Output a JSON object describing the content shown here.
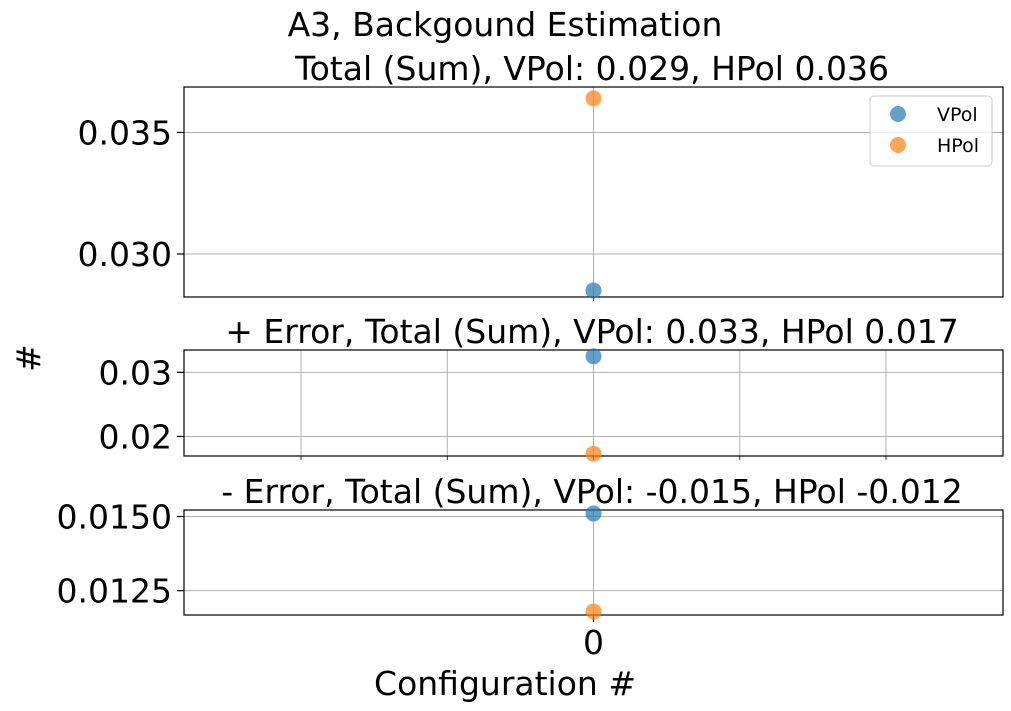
{
  "suptitle": "A3, Backgound Estimation",
  "ylabel": "#",
  "xlabel": "Configuration #",
  "legend": {
    "placement": "top-right",
    "entries": [
      {
        "label": "VPol",
        "color": "#1f77b4"
      },
      {
        "label": "HPol",
        "color": "#ff7f0e"
      }
    ]
  },
  "chart_data": [
    {
      "type": "scatter",
      "title": "Total (Sum), VPol: 0.029, HPol 0.036",
      "x": [
        0
      ],
      "xlim": [
        -1.4,
        1.4
      ],
      "ylim": [
        0.02823,
        0.03687
      ],
      "yticks": [
        0.03,
        0.035
      ],
      "ytick_labels": [
        "0.030",
        "0.035"
      ],
      "grid": true,
      "series": [
        {
          "name": "VPol",
          "values": [
            0.0285
          ]
        },
        {
          "name": "HPol",
          "values": [
            0.0364
          ]
        }
      ]
    },
    {
      "type": "scatter",
      "title": "+ Error, Total (Sum), VPol: 0.033, HPol 0.017",
      "x": [
        0
      ],
      "xlim": [
        -1.4,
        1.4
      ],
      "ylim": [
        0.01695,
        0.03348
      ],
      "yticks": [
        0.02,
        0.03
      ],
      "ytick_labels": [
        "0.02",
        "0.03"
      ],
      "xgrid": [
        -1,
        -0.5,
        0,
        0.5,
        1
      ],
      "grid": true,
      "series": [
        {
          "name": "VPol",
          "values": [
            0.0325
          ]
        },
        {
          "name": "HPol",
          "values": [
            0.0173
          ]
        }
      ]
    },
    {
      "type": "scatter",
      "title": "- Error, Total (Sum), VPol: -0.015, HPol -0.012",
      "x": [
        0
      ],
      "xlim": [
        -1.4,
        1.4
      ],
      "ylim": [
        0.01168,
        0.01522
      ],
      "yticks": [
        0.0125,
        0.015
      ],
      "ytick_labels": [
        "0.0125",
        "0.0150"
      ],
      "xticks": [
        0
      ],
      "xtick_labels": [
        "0"
      ],
      "grid": true,
      "series": [
        {
          "name": "VPol",
          "values": [
            0.0151
          ]
        },
        {
          "name": "HPol",
          "values": [
            0.0118
          ]
        }
      ]
    }
  ]
}
